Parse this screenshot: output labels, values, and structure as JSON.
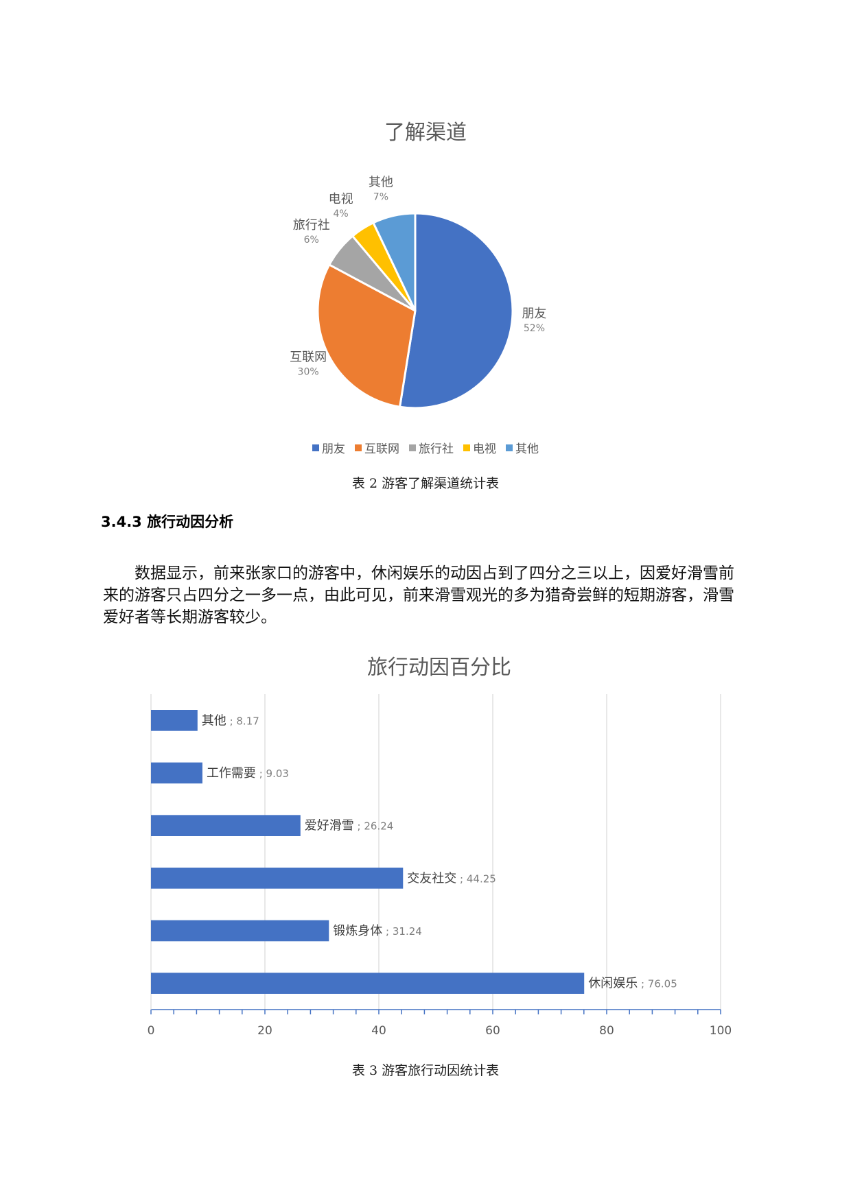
{
  "pie_chart": {
    "title": "了解渠道",
    "caption": "表 2 游客了解渠道统计表"
  },
  "section": {
    "heading": "3.4.3 旅行动因分析",
    "paragraph": "数据显示，前来张家口的游客中，休闲娱乐的动因占到了四分之三以上，因爱好滑雪前来的游客只占四分之一多一点，由此可见，前来滑雪观光的多为猎奇尝鲜的短期游客，滑雪爱好者等长期游客较少。"
  },
  "bar_chart": {
    "title": "旅行动因百分比",
    "caption": "表 3  游客旅行动因统计表"
  },
  "chart_data": [
    {
      "type": "pie",
      "title": "了解渠道",
      "categories": [
        "朋友",
        "互联网",
        "旅行社",
        "电视",
        "其他"
      ],
      "values": [
        52,
        30,
        6,
        4,
        7
      ],
      "labels": [
        "52%",
        "30%",
        "6%",
        "4%",
        "7%"
      ],
      "colors": [
        "#4472c4",
        "#ed7d31",
        "#a5a5a5",
        "#ffc000",
        "#5b9bd5"
      ],
      "legend": "bottom"
    },
    {
      "type": "bar",
      "orientation": "horizontal",
      "title": "旅行动因百分比",
      "categories": [
        "其他",
        "工作需要",
        "爱好滑雪",
        "交友社交",
        "锻炼身体",
        "休闲娱乐"
      ],
      "values": [
        8.17,
        9.03,
        26.24,
        44.25,
        31.24,
        76.05
      ],
      "data_labels": [
        "; 8.17",
        "; 9.03",
        "; 26.24",
        "; 44.25",
        "; 31.24",
        "; 76.05"
      ],
      "xlim": [
        0,
        100
      ],
      "x_ticks": [
        "0",
        "20",
        "40",
        "60",
        "80",
        "100"
      ],
      "grid": true,
      "color": "#4472c4"
    }
  ]
}
